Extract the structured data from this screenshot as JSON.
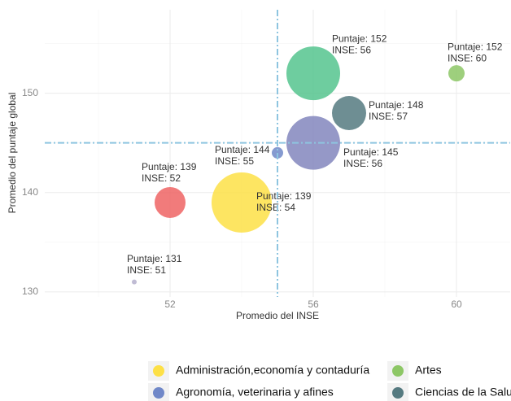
{
  "chart_data": {
    "type": "bubble",
    "x_label": "Promedio del INSE",
    "y_label": "Promedio del puntaje global",
    "xlim": [
      48.5,
      61.5
    ],
    "xticks": [
      52,
      56,
      60
    ],
    "xminor": [
      50,
      54,
      58
    ],
    "ylim": [
      129.5,
      158.4
    ],
    "yticks": [
      130,
      140,
      150
    ],
    "yminor": [
      135,
      145,
      155
    ],
    "grid": true,
    "vline": 55,
    "hline": 145,
    "ref_color": "#8ec5e0",
    "legend": "bottom",
    "series": [
      {
        "name": "Administración,economía y contaduría",
        "color": "#fde046",
        "x": 54,
        "y": 139,
        "size": 37,
        "label": [
          "Puntaje: 139",
          "INSE: 54"
        ]
      },
      {
        "name": "Artes",
        "color": "#8dc766",
        "x": 60,
        "y": 152,
        "size": 10,
        "label": [
          "Puntaje: 152",
          "INSE: 60"
        ]
      },
      {
        "name": "Agronomía, veterinaria y afines",
        "color": "#7088c8",
        "x": 55,
        "y": 144,
        "size": 7,
        "label": [
          "Puntaje: 144",
          "INSE: 55"
        ]
      },
      {
        "name": "Ciencias de la Salud",
        "color": "#557a80",
        "x": 57,
        "y": 148,
        "size": 21,
        "label": [
          "Puntaje: 148",
          "INSE: 57"
        ]
      },
      {
        "color": "#55c48e",
        "x": 56,
        "y": 152,
        "size": 33,
        "label": [
          "Puntaje: 152",
          "INSE: 56"
        ]
      },
      {
        "color": "#8286bd",
        "x": 56,
        "y": 145,
        "size": 33,
        "label": [
          "Puntaje: 145",
          "INSE: 56"
        ]
      },
      {
        "color": "#ef6464",
        "x": 52,
        "y": 139,
        "size": 19,
        "label": [
          "Puntaje: 139",
          "INSE: 52"
        ]
      },
      {
        "color": "#b5b0cc",
        "x": 51,
        "y": 131,
        "size": 3,
        "label": [
          "Puntaje: 131",
          "INSE: 51"
        ]
      }
    ]
  }
}
